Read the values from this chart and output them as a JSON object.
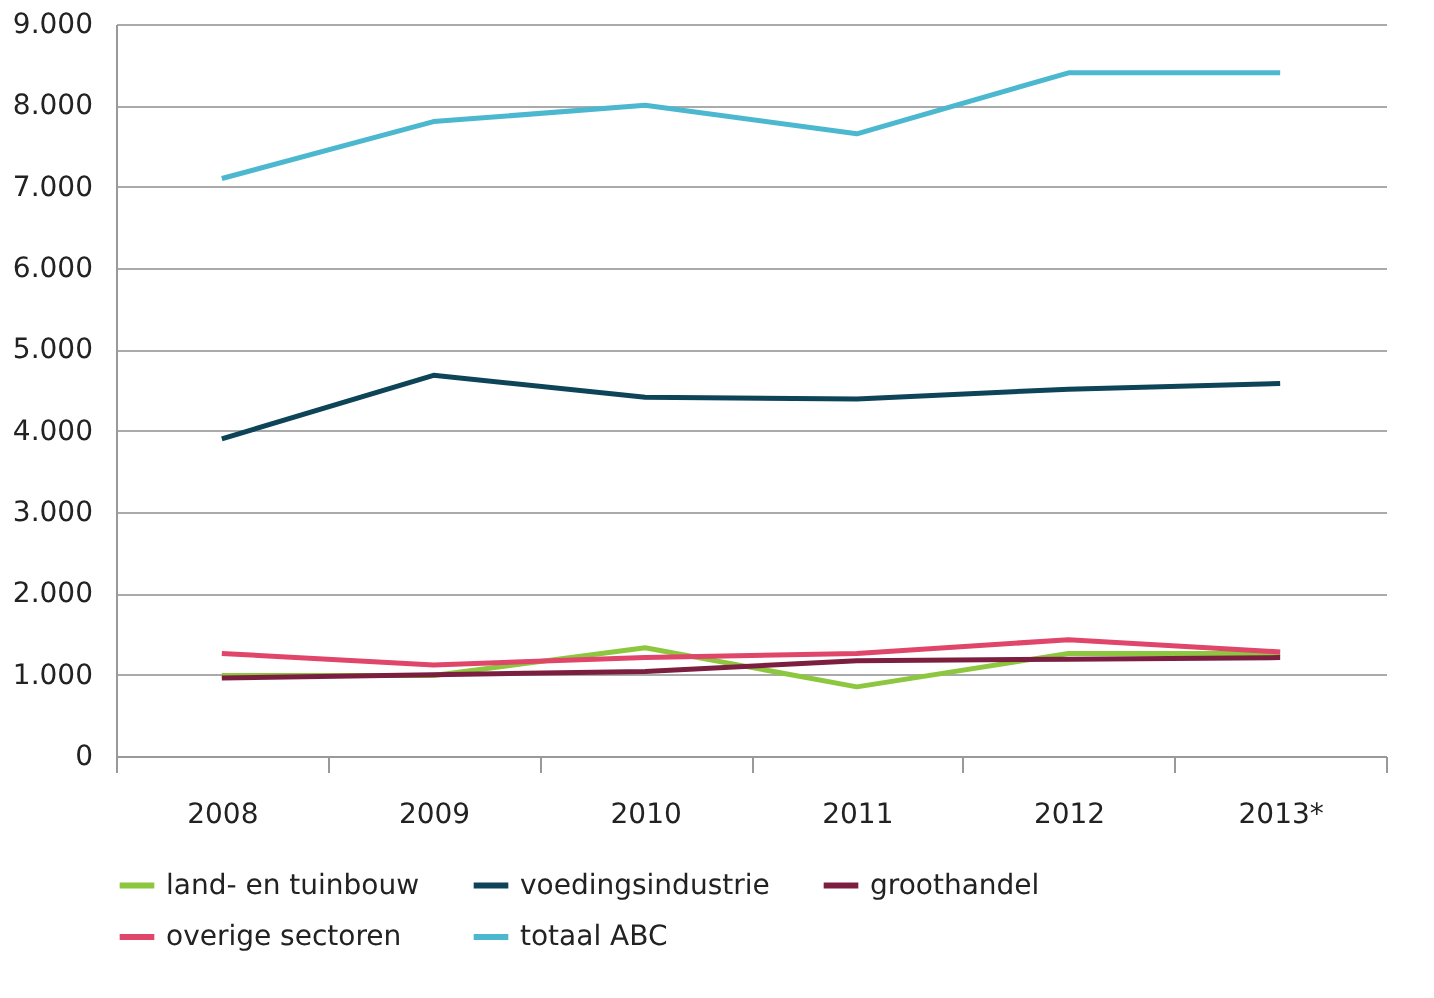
{
  "chart_data": {
    "type": "line",
    "categories": [
      "2008",
      "2009",
      "2010",
      "2011",
      "2012",
      "2013*"
    ],
    "series": [
      {
        "name": "land- en tuinbouw",
        "color": "#8dc63f",
        "values": [
          990,
          990,
          1330,
          850,
          1260,
          1260
        ]
      },
      {
        "name": "voedingsindustrie",
        "color": "#0d4458",
        "values": [
          3900,
          4680,
          4410,
          4390,
          4510,
          4580
        ]
      },
      {
        "name": "groothandel",
        "color": "#7b1e3f",
        "values": [
          960,
          1000,
          1040,
          1170,
          1190,
          1210
        ]
      },
      {
        "name": "overige sectoren",
        "color": "#e0456a",
        "values": [
          1260,
          1120,
          1210,
          1260,
          1430,
          1280
        ]
      },
      {
        "name": "totaal ABC",
        "color": "#4bb8d0",
        "values": [
          7100,
          7800,
          8000,
          7650,
          8400,
          8400
        ]
      }
    ],
    "ylim": [
      0,
      9000
    ],
    "yticks": [
      0,
      {
        "value": 1000,
        "label": "1.000"
      },
      {
        "value": 2000,
        "label": "2.000"
      },
      {
        "value": 3000,
        "label": "3.000"
      },
      {
        "value": 4000,
        "label": "4.000"
      },
      {
        "value": 5000,
        "label": "5.000"
      },
      {
        "value": 6000,
        "label": "6.000"
      },
      {
        "value": 7000,
        "label": "7.000"
      },
      {
        "value": 8000,
        "label": "8.000"
      },
      {
        "value": 9000,
        "label": "9.000"
      }
    ],
    "grid": "y",
    "legend": "bottom",
    "marker": "none",
    "line_style": "solid"
  }
}
